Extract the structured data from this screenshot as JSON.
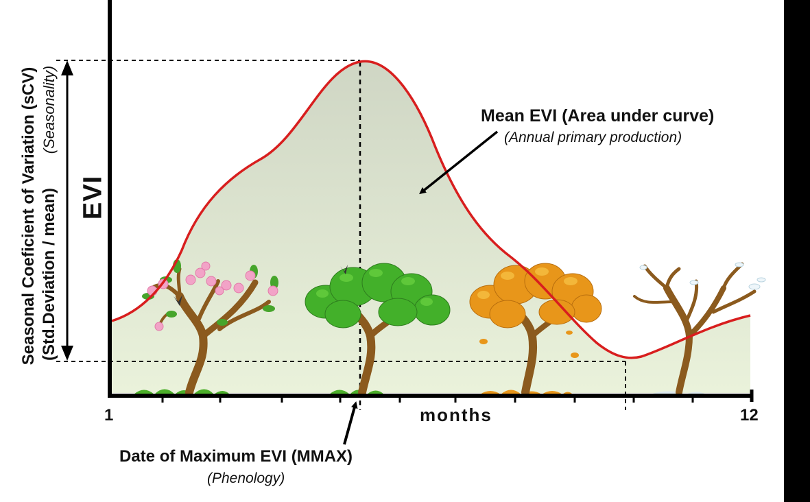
{
  "diagram": {
    "y_axis_label": "EVI",
    "x_axis_label": "months",
    "x_tick_start": "1",
    "x_tick_end": "12",
    "seasonality": {
      "line1": "Seasonal Coeficient of Variation (sCV)",
      "line2": "(Std.Deviation / mean)",
      "line2_italic": "(Seasonality)"
    },
    "mean_evi": {
      "title": "Mean EVI (Area under curve)",
      "subtitle": "(Annual primary production)"
    },
    "mmax": {
      "title": "Date of Maximum EVI (MMAX)",
      "subtitle": "(Phenology)"
    },
    "trees": [
      "spring-blossom-tree",
      "summer-green-tree",
      "autumn-orange-tree",
      "winter-bare-tree"
    ],
    "colors": {
      "curve": "#d81e1e",
      "area_fill_top": "#cfd6c4",
      "area_fill_bottom": "#e9f1da",
      "axis": "#000000",
      "blossom": "#f2a3c7",
      "summer_leaf": "#43b02a",
      "autumn_leaf": "#e8961a",
      "trunk": "#8b5a1e"
    }
  }
}
